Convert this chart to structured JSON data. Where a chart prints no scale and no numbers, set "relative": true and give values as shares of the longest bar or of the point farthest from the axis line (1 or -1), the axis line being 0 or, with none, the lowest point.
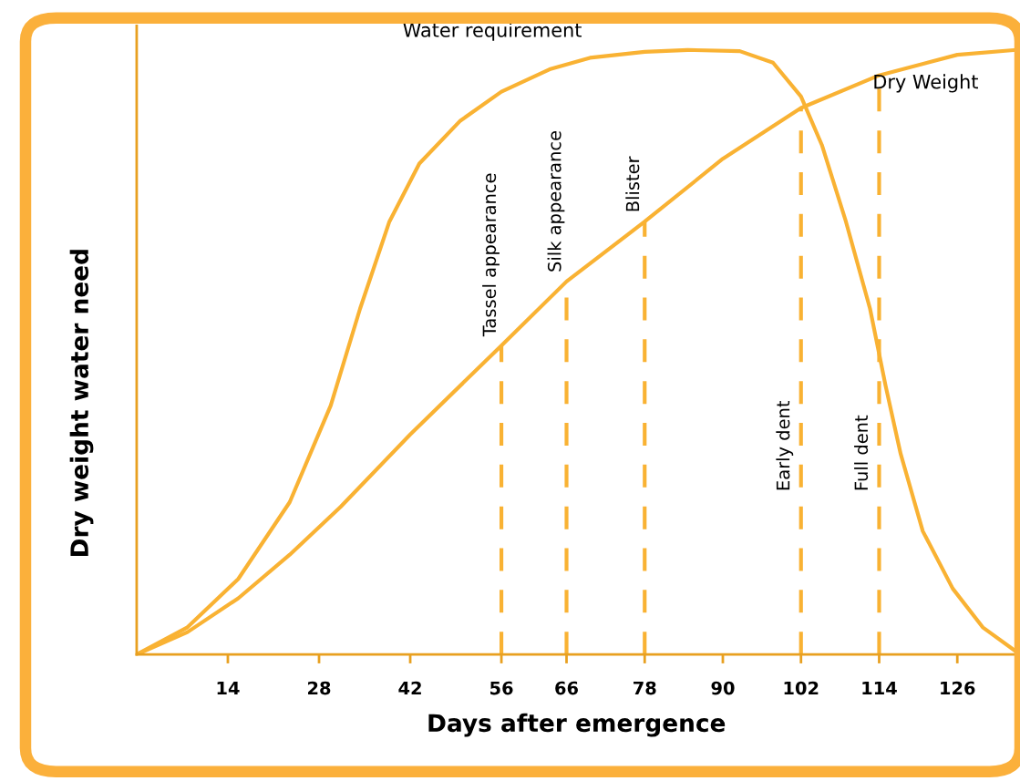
{
  "chart_data": {
    "type": "line",
    "relative": true,
    "xlabel": "Days after emergence",
    "ylabel": "Dry weight water need",
    "xlim": [
      0,
      135
    ],
    "xticks": [
      14,
      28,
      42,
      56,
      66,
      78,
      90,
      102,
      114,
      126
    ],
    "grid": false,
    "legend": false,
    "marker": "none",
    "line_style": "solid",
    "series": [
      {
        "name": "Water requirement",
        "color": "#f9b233",
        "x": [
          0,
          7.8,
          15.6,
          23.5,
          29.8,
          34.3,
          38.8,
          43.4,
          49.7,
          56,
          63.4,
          69.6,
          78,
          84.6,
          92.6,
          97.7,
          102,
          105.2,
          108.9,
          112.6,
          115.0,
          117.3,
          120.7,
          125.3,
          129.9,
          135
        ],
        "values": [
          0,
          0.045,
          0.125,
          0.252,
          0.412,
          0.572,
          0.716,
          0.812,
          0.883,
          0.931,
          0.968,
          0.987,
          0.997,
          1,
          0.998,
          0.979,
          0.923,
          0.843,
          0.716,
          0.572,
          0.444,
          0.332,
          0.204,
          0.109,
          0.045,
          0.005
        ]
      },
      {
        "name": "Dry Weight",
        "color": "#f9b233",
        "x": [
          0,
          7.8,
          15.6,
          23.5,
          31.3,
          42,
          56,
          66,
          78,
          90,
          102,
          114,
          126,
          135
        ],
        "values": [
          0,
          0.037,
          0.093,
          0.165,
          0.244,
          0.364,
          0.511,
          0.617,
          0.716,
          0.82,
          0.904,
          0.958,
          0.992,
          1
        ]
      }
    ],
    "ref_lines": [
      {
        "axis": "x",
        "value": 56,
        "label": "Tassel appearance",
        "color": "#f9b233",
        "line_style": "dashed"
      },
      {
        "axis": "x",
        "value": 66,
        "label": "Silk appearance",
        "color": "#f9b233",
        "line_style": "dashed"
      },
      {
        "axis": "x",
        "value": 78,
        "label": "Blister",
        "color": "#f9b233",
        "line_style": "dashed"
      },
      {
        "axis": "x",
        "value": 102,
        "label": "Early dent",
        "color": "#f9b233",
        "line_style": "dashed"
      },
      {
        "axis": "x",
        "value": 114,
        "label": "Full dent",
        "color": "#f9b233",
        "line_style": "dashed"
      }
    ]
  }
}
